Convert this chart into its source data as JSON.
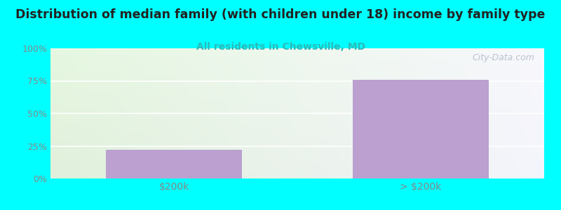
{
  "title": "Distribution of median family (with children under 18) income by family type",
  "subtitle": "All residents in Chewsville, MD",
  "categories": [
    "$200k",
    "> $200k"
  ],
  "values": [
    22,
    76
  ],
  "bar_color": "#bba0d0",
  "title_fontsize": 12.5,
  "subtitle_fontsize": 10,
  "subtitle_color": "#2ababa",
  "fig_bg_color": "#00ffff",
  "ytick_labels": [
    "0%",
    "25%",
    "50%",
    "75%",
    "100%"
  ],
  "ytick_values": [
    0,
    25,
    50,
    75,
    100
  ],
  "ylim": [
    0,
    100
  ],
  "watermark": "City-Data.com",
  "tick_color": "#888888",
  "grid_color": "#dddddd"
}
